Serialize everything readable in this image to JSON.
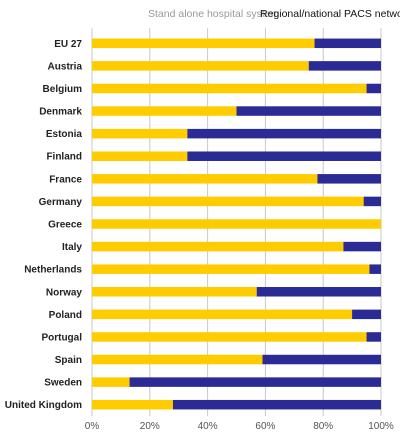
{
  "chart_data": {
    "type": "bar",
    "orientation": "horizontal",
    "stacked": true,
    "percent": true,
    "title": "",
    "xlabel": "",
    "ylabel": "",
    "xlim": [
      0,
      100
    ],
    "grid": true,
    "legend_position": "top",
    "categories": [
      "EU 27",
      "Austria",
      "Belgium",
      "Denmark",
      "Estonia",
      "Finland",
      "France",
      "Germany",
      "Greece",
      "Italy",
      "Netherlands",
      "Norway",
      "Poland",
      "Portugal",
      "Spain",
      "Sweden",
      "United Kingdom"
    ],
    "series": [
      {
        "name": "Stand alone hospital system",
        "color": "#FFCC00",
        "values": [
          77,
          75,
          95,
          50,
          33,
          33,
          78,
          94,
          100,
          87,
          96,
          57,
          90,
          95,
          59,
          13,
          28
        ]
      },
      {
        "name": "Regional/national PACS network",
        "color": "#2B2B96",
        "values": [
          23,
          25,
          5,
          50,
          67,
          67,
          22,
          6,
          0,
          13,
          4,
          43,
          10,
          5,
          41,
          87,
          72
        ]
      }
    ],
    "x_ticks": [
      "0%",
      "20%",
      "40%",
      "60%",
      "80%",
      "100%"
    ]
  }
}
